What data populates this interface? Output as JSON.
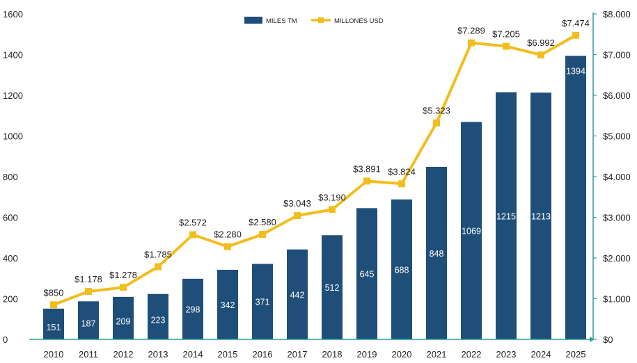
{
  "chart_data": {
    "type": "bar+line",
    "categories": [
      "2010",
      "2011",
      "2012",
      "2013",
      "2014",
      "2015",
      "2016",
      "2017",
      "2018",
      "2019",
      "2020",
      "2021",
      "2022",
      "2023",
      "2024",
      "2025"
    ],
    "series": [
      {
        "name": "MILES TM",
        "type": "bar",
        "axis": "left",
        "color": "#1F4E79",
        "values": [
          151,
          187,
          209,
          223,
          298,
          342,
          371,
          442,
          512,
          645,
          688,
          848,
          1069,
          1215,
          1213,
          1394
        ],
        "labels": [
          "151",
          "187",
          "209",
          "223",
          "298",
          "342",
          "371",
          "442",
          "512",
          "645",
          "688",
          "848",
          "1069",
          "1215",
          "1213",
          "1394"
        ]
      },
      {
        "name": "MILLONES USD",
        "type": "line",
        "axis": "right",
        "color": "#F2BE1E",
        "values": [
          850,
          1178,
          1278,
          1785,
          2572,
          2280,
          2580,
          3043,
          3190,
          3891,
          3824,
          5323,
          7289,
          7205,
          6992,
          7474
        ],
        "labels": [
          "$850",
          "$1.178",
          "$1.278",
          "$1.785",
          "$2.572",
          "$2.280",
          "$2.580",
          "$3.043",
          "$3.190",
          "$3.891",
          "$3.824",
          "$5.323",
          "$7.289",
          "$7.205",
          "$6.992",
          "$7.474"
        ]
      }
    ],
    "y_left": {
      "min": 0,
      "max": 1600,
      "ticks": [
        "0",
        "200",
        "400",
        "600",
        "800",
        "1000",
        "1200",
        "1400",
        "1600"
      ]
    },
    "y_right": {
      "min": 0,
      "max": 8000,
      "ticks": [
        "$0",
        "$1.000",
        "$2.000",
        "$3.000",
        "$4.000",
        "$5.000",
        "$6.000",
        "$7.000",
        "$8.000"
      ]
    },
    "axis_color": "#2E9C9A",
    "legend": {
      "position": "top-center",
      "items": [
        "MILES TM",
        "MILLONES USD"
      ]
    },
    "title": "",
    "xlabel": "",
    "ylabel": ""
  }
}
